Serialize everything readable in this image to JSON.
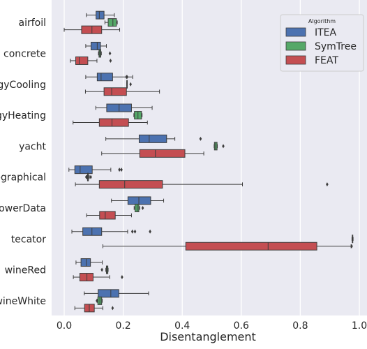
{
  "chart_data": {
    "type": "boxplot",
    "orientation": "horizontal",
    "xlabel": "Disentanglement",
    "ylabel": "",
    "xlim": [
      -0.04,
      1.0
    ],
    "x_ticks": [
      0.0,
      0.2,
      0.4,
      0.6,
      0.8,
      1.0
    ],
    "x_tick_labels": [
      "0.0",
      "0.2",
      "0.4",
      "0.6",
      "0.8",
      "1.0"
    ],
    "grid": true,
    "legend": {
      "title": "Algorithm",
      "placement": "top-right"
    },
    "categories": [
      "airfoil",
      "concrete",
      "energyCooling",
      "energyHeating",
      "yacht",
      "Geographical",
      "towerData",
      "tecator",
      "wineRed",
      "wineWhite"
    ],
    "series": [
      {
        "name": "ITEA",
        "color": "#4c72b0",
        "boxes": [
          {
            "whislo": 0.075,
            "q1": 0.108,
            "med": 0.119,
            "q3": 0.135,
            "whishi": 0.17,
            "fliers": []
          },
          {
            "whislo": 0.073,
            "q1": 0.091,
            "med": 0.112,
            "q3": 0.123,
            "whishi": 0.143,
            "fliers": []
          },
          {
            "whislo": 0.073,
            "q1": 0.112,
            "med": 0.125,
            "q3": 0.164,
            "whishi": 0.232,
            "fliers": [
              0.211,
              0.213
            ]
          },
          {
            "whislo": 0.107,
            "q1": 0.144,
            "med": 0.186,
            "q3": 0.228,
            "whishi": 0.298,
            "fliers": []
          },
          {
            "whislo": 0.141,
            "q1": 0.254,
            "med": 0.288,
            "q3": 0.347,
            "whishi": 0.375,
            "fliers": [
              0.462
            ]
          },
          {
            "whislo": 0.016,
            "q1": 0.036,
            "med": 0.054,
            "q3": 0.095,
            "whishi": 0.158,
            "fliers": [
              0.187,
              0.194
            ]
          },
          {
            "whislo": 0.16,
            "q1": 0.216,
            "med": 0.253,
            "q3": 0.293,
            "whishi": 0.337,
            "fliers": []
          },
          {
            "whislo": 0.026,
            "q1": 0.063,
            "med": 0.094,
            "q3": 0.127,
            "whishi": 0.215,
            "fliers": [
              0.231,
              0.24,
              0.291
            ]
          },
          {
            "whislo": 0.04,
            "q1": 0.057,
            "med": 0.075,
            "q3": 0.089,
            "whishi": 0.129,
            "fliers": []
          },
          {
            "whislo": 0.068,
            "q1": 0.115,
            "med": 0.158,
            "q3": 0.185,
            "whishi": 0.286,
            "fliers": []
          }
        ]
      },
      {
        "name": "SymTree",
        "color": "#55a868",
        "boxes": [
          {
            "whislo": 0.138,
            "q1": 0.149,
            "med": 0.165,
            "q3": 0.177,
            "whishi": 0.18,
            "fliers": []
          },
          {
            "whislo": 0.116,
            "q1": 0.118,
            "med": 0.121,
            "q3": 0.124,
            "whishi": 0.126,
            "fliers": [
              0.155
            ]
          },
          {
            "whislo": 0.212,
            "q1": 0.212,
            "med": 0.212,
            "q3": 0.212,
            "whishi": 0.212,
            "fliers": [
              0.225
            ]
          },
          {
            "whislo": 0.236,
            "q1": 0.238,
            "med": 0.25,
            "q3": 0.262,
            "whishi": 0.264,
            "fliers": []
          },
          {
            "whislo": 0.508,
            "q1": 0.509,
            "med": 0.513,
            "q3": 0.518,
            "whishi": 0.519,
            "fliers": [
              0.539
            ]
          },
          {
            "whislo": 0.077,
            "q1": 0.079,
            "med": 0.08,
            "q3": 0.082,
            "whishi": 0.085,
            "fliers": [
              0.075,
              0.09
            ]
          },
          {
            "whislo": 0.237,
            "q1": 0.24,
            "med": 0.247,
            "q3": 0.253,
            "whishi": 0.256,
            "fliers": [
              0.266
            ]
          },
          {
            "whislo": 0.975,
            "q1": 0.976,
            "med": 0.977,
            "q3": 0.978,
            "whishi": 0.979,
            "fliers": []
          },
          {
            "whislo": 0.141,
            "q1": 0.143,
            "med": 0.145,
            "q3": 0.148,
            "whishi": 0.149,
            "fliers": [
              0.128
            ]
          },
          {
            "whislo": 0.112,
            "q1": 0.114,
            "med": 0.121,
            "q3": 0.127,
            "whishi": 0.129,
            "fliers": [
              0.111
            ]
          }
        ]
      },
      {
        "name": "FEAT",
        "color": "#c44e52",
        "boxes": [
          {
            "whislo": 0.0,
            "q1": 0.059,
            "med": 0.094,
            "q3": 0.127,
            "whishi": 0.188,
            "fliers": []
          },
          {
            "whislo": 0.021,
            "q1": 0.039,
            "med": 0.051,
            "q3": 0.08,
            "whishi": 0.111,
            "fliers": [
              0.157
            ]
          },
          {
            "whislo": 0.072,
            "q1": 0.135,
            "med": 0.161,
            "q3": 0.211,
            "whishi": 0.323,
            "fliers": []
          },
          {
            "whislo": 0.03,
            "q1": 0.119,
            "med": 0.162,
            "q3": 0.218,
            "whishi": 0.282,
            "fliers": []
          },
          {
            "whislo": 0.127,
            "q1": 0.256,
            "med": 0.309,
            "q3": 0.409,
            "whishi": 0.473,
            "fliers": []
          },
          {
            "whislo": 0.038,
            "q1": 0.119,
            "med": 0.205,
            "q3": 0.333,
            "whishi": 0.604,
            "fliers": [
              0.891
            ]
          },
          {
            "whislo": 0.076,
            "q1": 0.12,
            "med": 0.139,
            "q3": 0.173,
            "whishi": 0.228,
            "fliers": []
          },
          {
            "whislo": 0.131,
            "q1": 0.412,
            "med": 0.691,
            "q3": 0.856,
            "whishi": 0.972,
            "fliers": [
              0.974
            ]
          },
          {
            "whislo": 0.031,
            "q1": 0.053,
            "med": 0.077,
            "q3": 0.098,
            "whishi": 0.154,
            "fliers": [
              0.196
            ]
          },
          {
            "whislo": 0.036,
            "q1": 0.069,
            "med": 0.085,
            "q3": 0.102,
            "whishi": 0.131,
            "fliers": [
              0.164
            ]
          }
        ]
      }
    ]
  }
}
